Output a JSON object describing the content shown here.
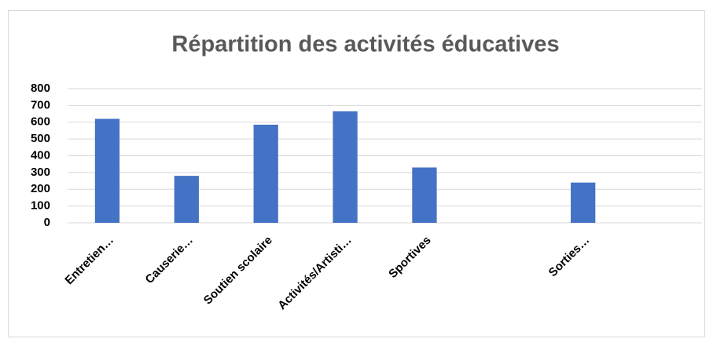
{
  "chart_data": {
    "type": "bar",
    "title": "Répartition des activités éducatives",
    "categories": [
      "Entretien…",
      "Causerie…",
      "Soutien scolaire",
      "Activités/Artisti…",
      "Sportives",
      null,
      "Sorties…",
      null
    ],
    "values": [
      620,
      280,
      585,
      665,
      330,
      null,
      240,
      null
    ],
    "color": "#4472c4",
    "ylim": [
      0,
      800
    ],
    "yticks": [
      0,
      100,
      200,
      300,
      400,
      500,
      600,
      700,
      800
    ],
    "grid": true
  }
}
